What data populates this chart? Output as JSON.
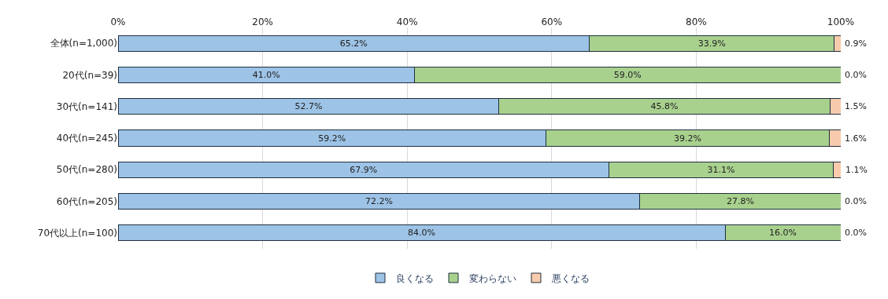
{
  "chart_data": {
    "type": "bar",
    "orientation": "horizontal",
    "stacked": true,
    "categories": [
      "全体(n=1,000)",
      "20代(n=39)",
      "30代(n=141)",
      "40代(n=245)",
      "50代(n=280)",
      "60代(n=205)",
      "70代以上(n=100)"
    ],
    "series": [
      {
        "name": "良くなる",
        "color": "#9dc3e6",
        "values": [
          65.2,
          41.0,
          52.7,
          59.2,
          67.9,
          72.2,
          84.0
        ],
        "value_labels": [
          "65.2%",
          "41.0%",
          "52.7%",
          "59.2%",
          "67.9%",
          "72.2%",
          "84.0%"
        ]
      },
      {
        "name": "変わらない",
        "color": "#a9d18e",
        "values": [
          33.9,
          59.0,
          45.8,
          39.2,
          31.1,
          27.8,
          16.0
        ],
        "value_labels": [
          "33.9%",
          "59.0%",
          "45.8%",
          "39.2%",
          "31.1%",
          "27.8%",
          "16.0%"
        ]
      },
      {
        "name": "悪くなる",
        "color": "#f8cbad",
        "values": [
          0.9,
          0.0,
          1.5,
          1.6,
          1.1,
          0.0,
          0.0
        ],
        "value_labels": [
          "0.9%",
          "0.0%",
          "1.5%",
          "1.6%",
          "1.1%",
          "0.0%",
          "0.0%"
        ]
      }
    ],
    "xlim": [
      0,
      100
    ],
    "xticks": [
      {
        "value": 0,
        "label": "0%"
      },
      {
        "value": 20,
        "label": "20%"
      },
      {
        "value": 40,
        "label": "40%"
      },
      {
        "value": 60,
        "label": "60%"
      },
      {
        "value": 80,
        "label": "80%"
      },
      {
        "value": 100,
        "label": "100%"
      }
    ],
    "grid": "x",
    "legend": "bottom"
  }
}
